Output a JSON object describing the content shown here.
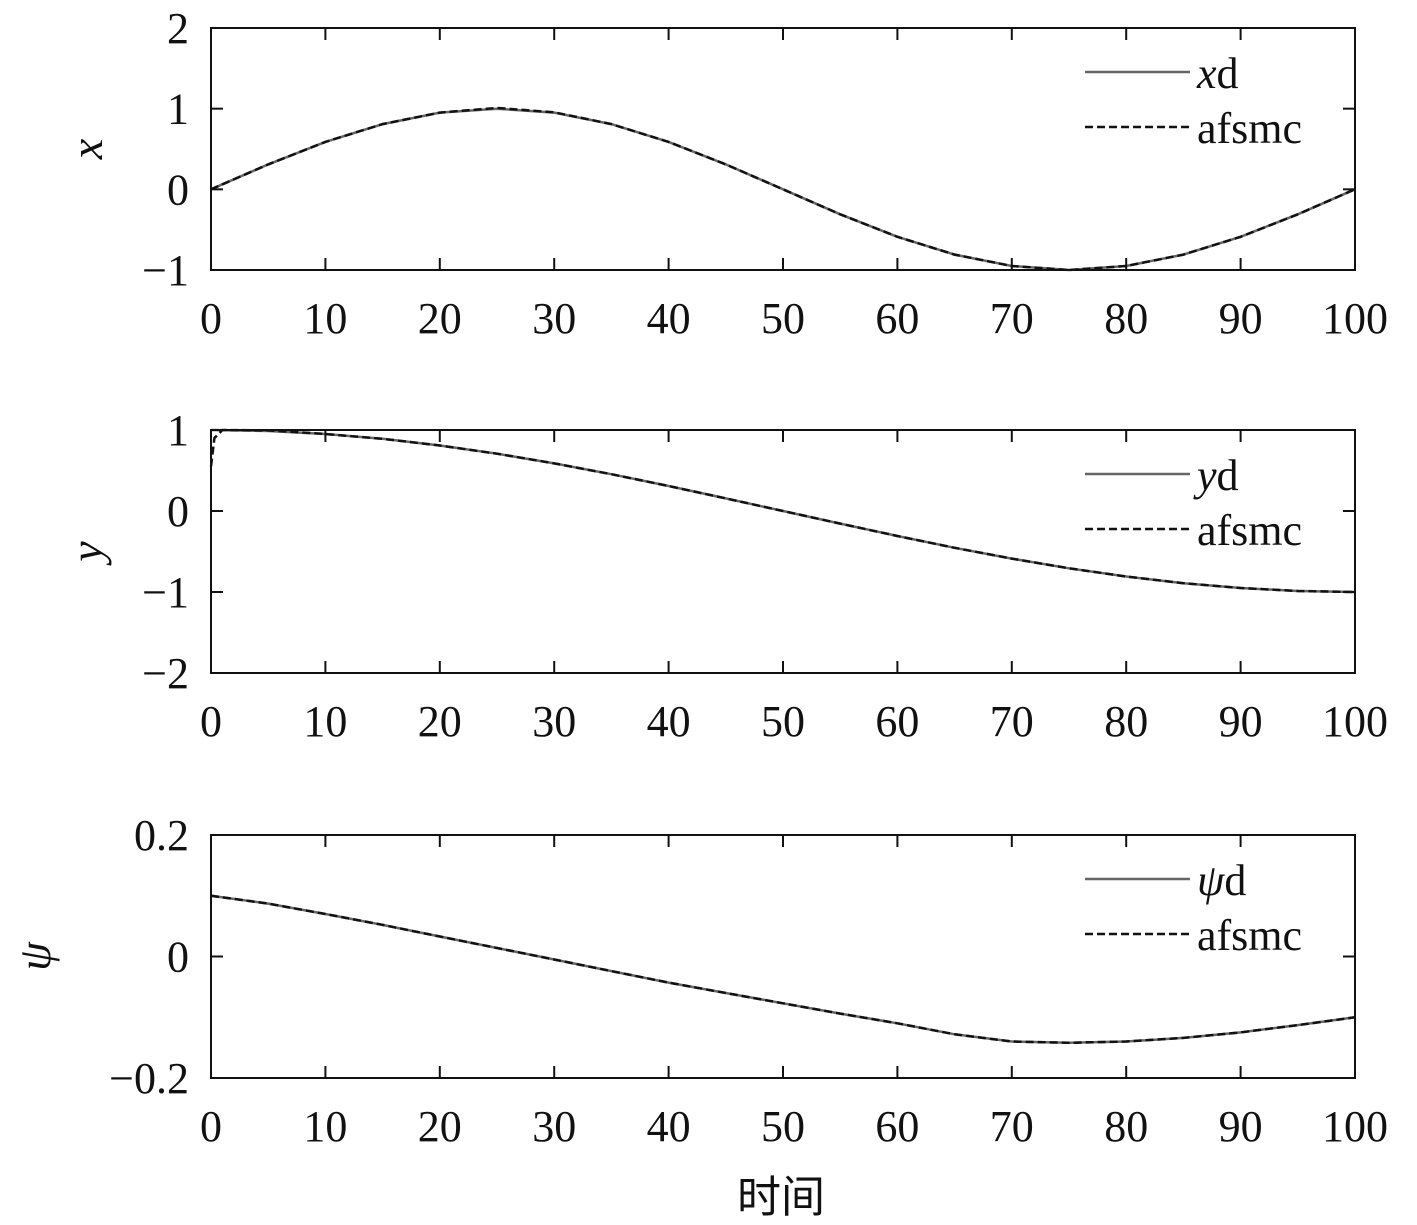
{
  "chart_data": [
    {
      "type": "line",
      "ylabel": "x",
      "ylim": [
        -1,
        2
      ],
      "yticks": [
        "2",
        "1",
        "0",
        "−1"
      ],
      "ytick_values": [
        2,
        1,
        0,
        -1
      ],
      "xlim": [
        0,
        100
      ],
      "xticks": [
        "0",
        "10",
        "20",
        "30",
        "40",
        "50",
        "60",
        "70",
        "80",
        "90",
        "100"
      ],
      "legend_position": "top-right",
      "series": [
        {
          "name": "xd",
          "name_italic": "x",
          "name_rest": "d",
          "style": "solid",
          "color": "#666666",
          "x": [
            0,
            5,
            10,
            15,
            20,
            25,
            30,
            35,
            40,
            45,
            50,
            55,
            60,
            65,
            70,
            75,
            80,
            85,
            90,
            95,
            100
          ],
          "y": [
            0,
            0.309,
            0.588,
            0.809,
            0.951,
            1,
            0.951,
            0.809,
            0.588,
            0.309,
            0,
            -0.309,
            -0.588,
            -0.809,
            -0.951,
            -1,
            -0.951,
            -0.809,
            -0.588,
            -0.309,
            0
          ]
        },
        {
          "name": "afsmc",
          "style": "dashed",
          "color": "#111111",
          "x": [
            0,
            5,
            10,
            15,
            20,
            25,
            30,
            35,
            40,
            45,
            50,
            55,
            60,
            65,
            70,
            75,
            80,
            85,
            90,
            95,
            100
          ],
          "y": [
            0,
            0.309,
            0.588,
            0.809,
            0.951,
            1.01,
            0.955,
            0.809,
            0.588,
            0.309,
            0,
            -0.309,
            -0.588,
            -0.809,
            -0.951,
            -1,
            -0.951,
            -0.809,
            -0.588,
            -0.309,
            0
          ]
        }
      ]
    },
    {
      "type": "line",
      "ylabel": "y",
      "ylim": [
        -2,
        1
      ],
      "yticks": [
        "1",
        "0",
        "−1",
        "−2"
      ],
      "ytick_values": [
        1,
        0,
        -1,
        -2
      ],
      "xlim": [
        0,
        100
      ],
      "xticks": [
        "0",
        "10",
        "20",
        "30",
        "40",
        "50",
        "60",
        "70",
        "80",
        "90",
        "100"
      ],
      "legend_position": "top-right",
      "series": [
        {
          "name": "yd",
          "name_italic": "y",
          "name_rest": "d",
          "style": "solid",
          "color": "#666666",
          "x": [
            0,
            5,
            10,
            15,
            20,
            25,
            30,
            35,
            40,
            45,
            50,
            55,
            60,
            65,
            70,
            75,
            80,
            85,
            90,
            95,
            100
          ],
          "y": [
            1,
            0.988,
            0.951,
            0.891,
            0.809,
            0.707,
            0.588,
            0.454,
            0.309,
            0.156,
            0,
            -0.156,
            -0.309,
            -0.454,
            -0.588,
            -0.707,
            -0.809,
            -0.891,
            -0.951,
            -0.988,
            -1
          ]
        },
        {
          "name": "afsmc",
          "style": "dashed",
          "color": "#111111",
          "x": [
            0,
            0.3,
            1,
            5,
            10,
            15,
            20,
            25,
            30,
            35,
            40,
            45,
            50,
            55,
            60,
            65,
            70,
            75,
            80,
            85,
            90,
            95,
            100
          ],
          "y": [
            0.55,
            0.9,
            1,
            0.995,
            0.951,
            0.891,
            0.809,
            0.707,
            0.588,
            0.454,
            0.309,
            0.156,
            0,
            -0.156,
            -0.309,
            -0.454,
            -0.588,
            -0.707,
            -0.809,
            -0.891,
            -0.951,
            -0.988,
            -1
          ]
        }
      ]
    },
    {
      "type": "line",
      "ylabel": "ψ",
      "xlabel": "时间",
      "ylim": [
        -0.2,
        0.2
      ],
      "yticks": [
        "0.2",
        "0",
        "−0.2"
      ],
      "ytick_values": [
        0.2,
        0,
        -0.2
      ],
      "xlim": [
        0,
        100
      ],
      "xticks": [
        "0",
        "10",
        "20",
        "30",
        "40",
        "50",
        "60",
        "70",
        "80",
        "90",
        "100"
      ],
      "legend_position": "top-right",
      "series": [
        {
          "name": "ψd",
          "name_italic": "ψ",
          "name_rest": "d",
          "style": "solid",
          "color": "#666666",
          "x": [
            0,
            5,
            10,
            15,
            20,
            25,
            30,
            35,
            40,
            45,
            50,
            55,
            60,
            65,
            70,
            75,
            80,
            85,
            90,
            95,
            100
          ],
          "y": [
            0.1,
            0.087,
            0.07,
            0.052,
            0.033,
            0.014,
            -0.005,
            -0.024,
            -0.043,
            -0.06,
            -0.077,
            -0.094,
            -0.11,
            -0.128,
            -0.14,
            -0.142,
            -0.14,
            -0.134,
            -0.125,
            -0.113,
            -0.1
          ]
        },
        {
          "name": "afsmc",
          "style": "dashed",
          "color": "#111111",
          "x": [
            0,
            5,
            10,
            15,
            20,
            25,
            30,
            35,
            40,
            45,
            50,
            55,
            60,
            65,
            70,
            75,
            80,
            85,
            90,
            95,
            100
          ],
          "y": [
            0.1,
            0.087,
            0.07,
            0.052,
            0.033,
            0.014,
            -0.005,
            -0.024,
            -0.043,
            -0.06,
            -0.077,
            -0.094,
            -0.11,
            -0.128,
            -0.14,
            -0.142,
            -0.14,
            -0.134,
            -0.125,
            -0.113,
            -0.1
          ]
        }
      ]
    }
  ]
}
